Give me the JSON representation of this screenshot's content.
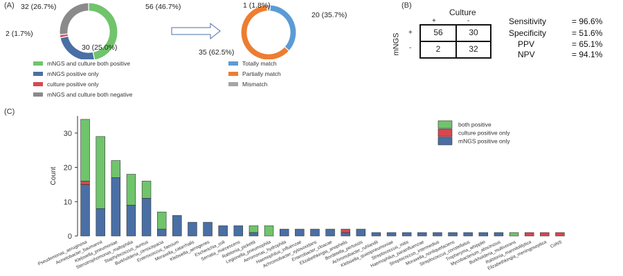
{
  "panel_labels": {
    "a": "(A)",
    "b": "(B)",
    "c": "(C)"
  },
  "chart_data": [
    {
      "type": "pie",
      "subtype": "donut",
      "name": "mNGS vs culture concordance",
      "slices": [
        {
          "label": "mNGS and culture both positive",
          "value": 56,
          "text": "56 (46.7%)",
          "color": "#70c46c"
        },
        {
          "label": "mNGS positive only",
          "value": 30,
          "text": "30 (25.0%)",
          "color": "#4a6fa5"
        },
        {
          "label": "culture positive only",
          "value": 2,
          "text": "2 (1.7%)",
          "color": "#d9474f"
        },
        {
          "label": "mNGS and culture both negative",
          "value": 32,
          "text": "32 (26.7%)",
          "color": "#8a8a8a"
        }
      ]
    },
    {
      "type": "pie",
      "subtype": "donut",
      "name": "Match among both positive",
      "slices": [
        {
          "label": "Totally match",
          "value": 20,
          "text": "20 (35.7%)",
          "color": "#5b9bd5"
        },
        {
          "label": "Partially match",
          "value": 35,
          "text": "35 (62.5%)",
          "color": "#ed7d31"
        },
        {
          "label": "Mismatch",
          "value": 1,
          "text": "1 (1.8%)",
          "color": "#a5a5a5"
        }
      ]
    },
    {
      "type": "table",
      "name": "Contingency table",
      "col_header": "Culture",
      "row_header": "mNGS",
      "col_labels": [
        "+",
        "-"
      ],
      "row_labels": [
        "+",
        "-"
      ],
      "cells": [
        [
          "56",
          "30"
        ],
        [
          "2",
          "32"
        ]
      ],
      "metrics": [
        {
          "name": "Sensitivity",
          "value": "= 96.6%"
        },
        {
          "name": "Specificity",
          "value": "= 51.6%"
        },
        {
          "name": "PPV",
          "value": "= 65.1%"
        },
        {
          "name": "NPV",
          "value": "= 94.1%"
        }
      ]
    },
    {
      "type": "bar",
      "stacked": true,
      "ylabel": "Count",
      "ylim": [
        0,
        35
      ],
      "yticks": [
        0,
        10,
        20,
        30
      ],
      "legend_position": "top-right",
      "categories": [
        "Pseudomonas_aeruginosa",
        "Acinetobacter_baumannii",
        "Klebsiella_pneumoniae",
        "Stenotrophomonas_maltophilia",
        "Staphylococcus_aureus",
        "Burkholderia_cenocepacia",
        "Enterococcus_faecium",
        "Moraxella_catarrhalis",
        "Klebsiella_aerogenes",
        "Escherichia_coli",
        "Serratia_marcescens",
        "Ralstonia_pickettii",
        "Legionella_pneumophila",
        "Aeromonas_hydrophila",
        "Haemophilus_influenzae",
        "Achromobacter_xylosoxidans",
        "Enterobacter_cloacae",
        "Elizabethkingia_anophelis",
        "Bordetella_pertussis",
        "Achromobacter_ruhlandii",
        "Klebsiella_quasipneumoniae",
        "Streptococcus_mitis",
        "Haemophilus_parainfluenzae",
        "Streptococcus_intermedius",
        "Moraxella_nonliquefaciens",
        "Streptococcus_constellatus",
        "Tropheryma_whipplei",
        "Mycobacterium_abscessus",
        "Burkholderia_multivorans",
        "Ralstonia_mannitolilytica",
        "Elizabethkingia_meningoseptica",
        "CoNS"
      ],
      "series": [
        {
          "name": "mNGS positive only",
          "color": "#4a6fa5",
          "values": [
            15,
            8,
            17,
            9,
            11,
            2,
            6,
            4,
            4,
            3,
            3,
            1,
            0,
            2,
            2,
            2,
            2,
            1,
            2,
            1,
            1,
            1,
            1,
            1,
            1,
            1,
            1,
            1,
            0,
            0,
            0,
            0
          ]
        },
        {
          "name": "culture positive only",
          "color": "#d9474f",
          "values": [
            1,
            0,
            0,
            0,
            0,
            0,
            0,
            0,
            0,
            0,
            0,
            0,
            0,
            0,
            0,
            0,
            0,
            1,
            0,
            0,
            0,
            0,
            0,
            0,
            0,
            0,
            0,
            0,
            0,
            1,
            1,
            1
          ]
        },
        {
          "name": "both positive",
          "color": "#70c46c",
          "values": [
            18,
            21,
            5,
            9,
            5,
            5,
            0,
            0,
            0,
            0,
            0,
            2,
            3,
            0,
            0,
            0,
            0,
            0,
            0,
            0,
            0,
            0,
            0,
            0,
            0,
            0,
            0,
            0,
            1,
            0,
            0,
            0
          ]
        }
      ],
      "legend": [
        "both positive",
        "culture positive only",
        "mNGS positive only"
      ]
    }
  ]
}
